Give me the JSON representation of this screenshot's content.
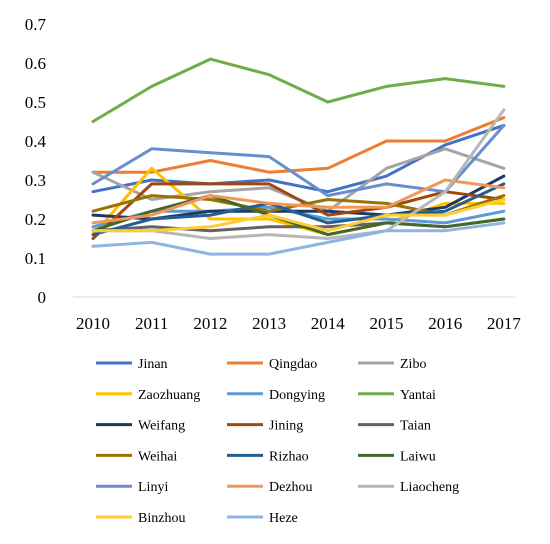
{
  "chart_data": {
    "type": "line",
    "title": "",
    "xlabel": "",
    "ylabel": "",
    "ylim": [
      0,
      0.7
    ],
    "yticks": [
      "0",
      "0.1",
      "0.2",
      "0.3",
      "0.4",
      "0.5",
      "0.6",
      "0.7"
    ],
    "ytick_values": [
      0,
      0.1,
      0.2,
      0.3,
      0.4,
      0.5,
      0.6,
      0.7
    ],
    "grid": false,
    "legend_position": "bottom",
    "categories": [
      "2010",
      "2011",
      "2012",
      "2013",
      "2014",
      "2015",
      "2016",
      "2017"
    ],
    "series": [
      {
        "name": "Jinan",
        "color": "#4472C4",
        "values": [
          0.27,
          0.3,
          0.29,
          0.3,
          0.27,
          0.31,
          0.39,
          0.44
        ]
      },
      {
        "name": "Qingdao",
        "color": "#ED7D31",
        "values": [
          0.32,
          0.32,
          0.35,
          0.32,
          0.33,
          0.4,
          0.4,
          0.46
        ]
      },
      {
        "name": "Zibo",
        "color": "#A5A5A5",
        "values": [
          0.32,
          0.25,
          0.27,
          0.28,
          0.22,
          0.33,
          0.38,
          0.33
        ]
      },
      {
        "name": "Zaozhuang",
        "color": "#FFC000",
        "values": [
          0.16,
          0.33,
          0.2,
          0.2,
          0.16,
          0.19,
          0.24,
          0.24
        ]
      },
      {
        "name": "Dongying",
        "color": "#5B9BD5",
        "values": [
          0.18,
          0.22,
          0.22,
          0.23,
          0.2,
          0.2,
          0.19,
          0.22
        ]
      },
      {
        "name": "Yantai",
        "color": "#70AD47",
        "values": [
          0.45,
          0.54,
          0.61,
          0.57,
          0.5,
          0.54,
          0.56,
          0.54
        ]
      },
      {
        "name": "Weifang",
        "color": "#1F3864",
        "values": [
          0.21,
          0.2,
          0.22,
          0.22,
          0.22,
          0.21,
          0.23,
          0.31
        ]
      },
      {
        "name": "Jining",
        "color": "#9E480E",
        "values": [
          0.15,
          0.29,
          0.29,
          0.29,
          0.21,
          0.23,
          0.27,
          0.25
        ]
      },
      {
        "name": "Taian",
        "color": "#636363",
        "values": [
          0.17,
          0.18,
          0.17,
          0.18,
          0.18,
          0.19,
          0.18,
          0.2
        ]
      },
      {
        "name": "Weihai",
        "color": "#997300",
        "values": [
          0.22,
          0.26,
          0.25,
          0.22,
          0.25,
          0.24,
          0.21,
          0.26
        ]
      },
      {
        "name": "Rizhao",
        "color": "#255E91",
        "values": [
          0.16,
          0.2,
          0.21,
          0.24,
          0.19,
          0.21,
          0.22,
          0.29
        ]
      },
      {
        "name": "Laiwu",
        "color": "#43682B",
        "values": [
          0.17,
          0.22,
          0.26,
          0.21,
          0.16,
          0.19,
          0.18,
          0.2
        ]
      },
      {
        "name": "Linyi",
        "color": "#698ED0",
        "values": [
          0.29,
          0.38,
          0.37,
          0.36,
          0.26,
          0.29,
          0.27,
          0.44
        ]
      },
      {
        "name": "Dezhou",
        "color": "#F1975A",
        "values": [
          0.19,
          0.21,
          0.26,
          0.24,
          0.23,
          0.23,
          0.3,
          0.28
        ]
      },
      {
        "name": "Liaocheng",
        "color": "#B7B7B7",
        "values": [
          0.17,
          0.17,
          0.15,
          0.16,
          0.15,
          0.17,
          0.27,
          0.48
        ]
      },
      {
        "name": "Binzhou",
        "color": "#FFCD33",
        "values": [
          0.17,
          0.17,
          0.18,
          0.21,
          0.17,
          0.21,
          0.21,
          0.25
        ]
      },
      {
        "name": "Heze",
        "color": "#8FB4E3",
        "values": [
          0.13,
          0.14,
          0.11,
          0.11,
          0.14,
          0.17,
          0.17,
          0.19
        ]
      }
    ]
  }
}
